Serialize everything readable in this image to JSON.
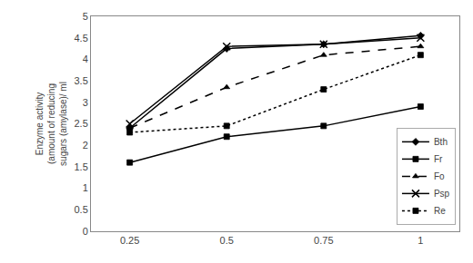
{
  "chart_data": {
    "type": "line",
    "x": [
      0.25,
      0.5,
      0.75,
      1.0
    ],
    "series": [
      {
        "name": "Bth",
        "color": "black",
        "marker": "diamond",
        "line_style": "solid",
        "values": [
          2.4,
          4.25,
          4.35,
          4.55
        ]
      },
      {
        "name": "Fr",
        "color": "black",
        "marker": "square",
        "line_style": "solid",
        "values": [
          1.6,
          2.2,
          2.45,
          2.9
        ]
      },
      {
        "name": "Fo",
        "color": "black",
        "marker": "triangle-up",
        "line_style": "dashed",
        "values": [
          2.4,
          3.35,
          4.1,
          4.3
        ]
      },
      {
        "name": "Psp",
        "color": "black",
        "marker": "x",
        "line_style": "solid",
        "values": [
          2.5,
          4.3,
          4.35,
          4.5
        ]
      },
      {
        "name": "Re",
        "color": "black",
        "marker": "square",
        "line_style": "dotted",
        "values": [
          2.3,
          2.45,
          3.3,
          4.1
        ]
      }
    ],
    "y_label": "Enzyme activity\n(amount of reducing\nsugars (amylase)/ ml",
    "xlim": [
      0.15,
      1.1
    ],
    "ylim": [
      0,
      5
    ],
    "xticks": [
      0.25,
      0.5,
      0.75,
      1
    ],
    "yticks": [
      0,
      0.5,
      1,
      1.5,
      2,
      2.5,
      3,
      3.5,
      4,
      4.5,
      5
    ],
    "grid": false,
    "legend": "lower right"
  }
}
